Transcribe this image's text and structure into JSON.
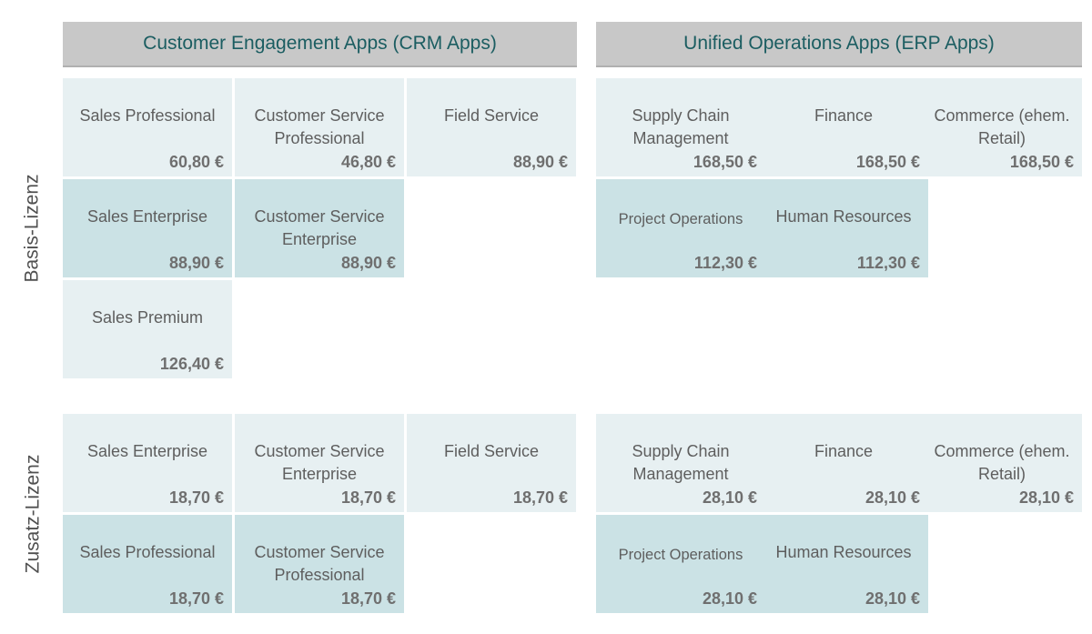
{
  "headers": {
    "crm": "Customer Engagement Apps (CRM Apps)",
    "erp": "Unified Operations Apps (ERP Apps)"
  },
  "row_labels": {
    "basis": "Basis-Lizenz",
    "zusatz": "Zusatz-Lizenz"
  },
  "basis": {
    "crm": [
      {
        "name": "Sales Professional",
        "price": "60,80 €"
      },
      {
        "name": "Customer Service Professional",
        "price": "46,80 €"
      },
      {
        "name": "Field Service",
        "price": "88,90 €"
      },
      {
        "name": "Sales Enterprise",
        "price": "88,90 €"
      },
      {
        "name": "Customer Service Enterprise",
        "price": "88,90 €"
      },
      {
        "name": "Sales Premium",
        "price": "126,40 €"
      }
    ],
    "erp": [
      {
        "name": "Supply Chain Management",
        "price": "168,50 €"
      },
      {
        "name": "Finance",
        "price": "168,50 €"
      },
      {
        "name": "Commerce (ehem. Retail)",
        "price": "168,50 €"
      },
      {
        "name": "Project Operations",
        "price": "112,30 €"
      },
      {
        "name": "Human Resources",
        "price": "112,30 €"
      }
    ]
  },
  "zusatz": {
    "crm": [
      {
        "name": "Sales Enterprise",
        "price": "18,70 €"
      },
      {
        "name": "Customer Service Enterprise",
        "price": "18,70 €"
      },
      {
        "name": "Field Service",
        "price": "18,70 €"
      },
      {
        "name": "Sales Professional",
        "price": "18,70 €"
      },
      {
        "name": "Customer Service Professional",
        "price": "18,70 €"
      }
    ],
    "erp": [
      {
        "name": "Supply Chain Management",
        "price": "28,10 €"
      },
      {
        "name": "Finance",
        "price": "28,10 €"
      },
      {
        "name": "Commerce (ehem. Retail)",
        "price": "28,10 €"
      },
      {
        "name": "Project Operations",
        "price": "28,10 €"
      },
      {
        "name": "Human Resources",
        "price": "28,10 €"
      }
    ]
  }
}
